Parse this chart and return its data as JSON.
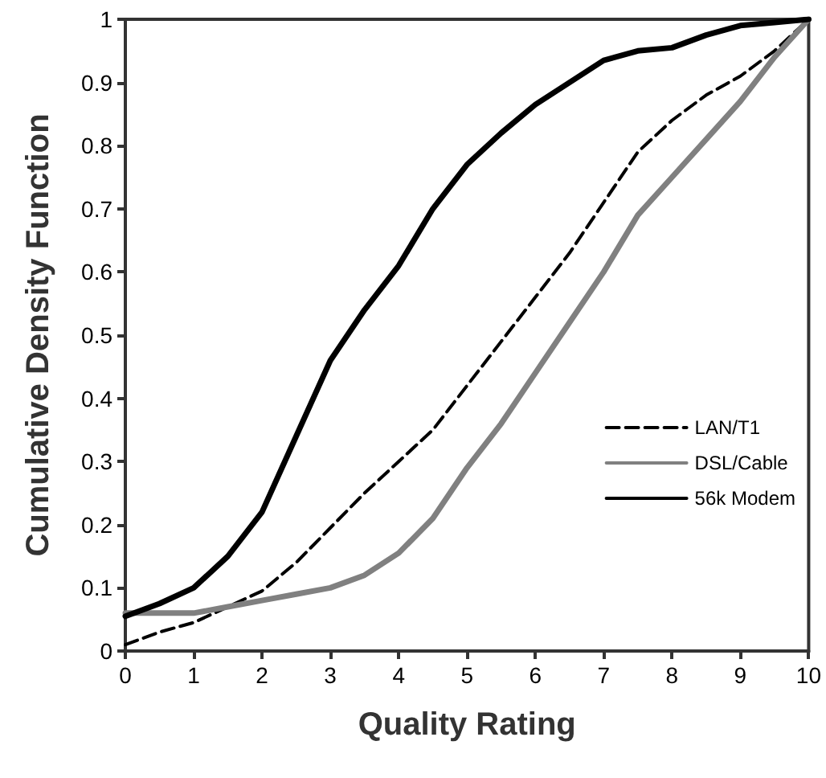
{
  "chart_data": {
    "type": "line",
    "xlabel": "Quality Rating",
    "ylabel": "Cumulative Density Function",
    "x": [
      0,
      0.5,
      1,
      1.5,
      2,
      2.5,
      3,
      3.5,
      4,
      4.5,
      5,
      5.5,
      6,
      6.5,
      7,
      7.5,
      8,
      8.5,
      9,
      9.5,
      10
    ],
    "series": [
      {
        "name": "LAN/T1",
        "color": "#000000",
        "line_style": "dashed",
        "values": [
          0.01,
          0.03,
          0.045,
          0.07,
          0.095,
          0.14,
          0.195,
          0.25,
          0.3,
          0.35,
          0.42,
          0.49,
          0.56,
          0.63,
          0.71,
          0.79,
          0.84,
          0.88,
          0.91,
          0.95,
          1
        ]
      },
      {
        "name": "DSL/Cable",
        "color": "#808080",
        "line_style": "solid",
        "values": [
          0.06,
          0.06,
          0.06,
          0.07,
          0.08,
          0.09,
          0.1,
          0.12,
          0.155,
          0.21,
          0.29,
          0.36,
          0.44,
          0.52,
          0.6,
          0.69,
          0.75,
          0.81,
          0.87,
          0.94,
          1
        ]
      },
      {
        "name": "56k Modem",
        "color": "#000000",
        "line_style": "solid",
        "values": [
          0.055,
          0.075,
          0.1,
          0.15,
          0.22,
          0.34,
          0.46,
          0.54,
          0.61,
          0.7,
          0.77,
          0.82,
          0.865,
          0.9,
          0.935,
          0.95,
          0.955,
          0.975,
          0.99,
          0.995,
          1
        ]
      }
    ],
    "xlim": [
      0,
      10
    ],
    "xticks": [
      0,
      1,
      2,
      3,
      4,
      5,
      6,
      7,
      8,
      9,
      10
    ],
    "ylim": [
      0,
      1
    ],
    "yticks": [
      0,
      0.1,
      0.2,
      0.3,
      0.4,
      0.5,
      0.6,
      0.7,
      0.8,
      0.9,
      1
    ],
    "grid": false,
    "legend": "right",
    "marker": "none"
  }
}
